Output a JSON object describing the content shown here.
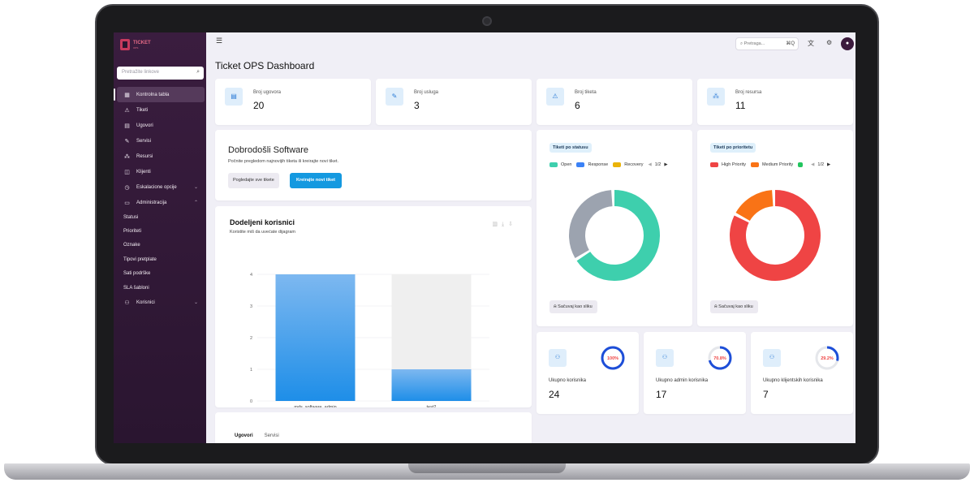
{
  "app": {
    "logo_text": "TICKET",
    "logo_sub": "OPS"
  },
  "sidebar": {
    "search_placeholder": "Pretražite linkove",
    "items": [
      {
        "label": "Kontrolna tabla",
        "icon": "grid-icon"
      },
      {
        "label": "Tiketi",
        "icon": "warning-icon"
      },
      {
        "label": "Ugovori",
        "icon": "document-icon"
      },
      {
        "label": "Servisi",
        "icon": "wrench-icon"
      },
      {
        "label": "Resursi",
        "icon": "cluster-icon"
      },
      {
        "label": "Klijenti",
        "icon": "briefcase-icon"
      },
      {
        "label": "Eskalacione opcije",
        "icon": "clock-icon"
      },
      {
        "label": "Administracija",
        "icon": "folder-icon"
      }
    ],
    "admin_subitems": [
      "Statusi",
      "Prioriteti",
      "Oznake",
      "Tipovi pretplate",
      "Sati podrške",
      "SLA šabloni"
    ],
    "users_item": {
      "label": "Korisnici",
      "icon": "users-icon"
    }
  },
  "topbar": {
    "search_placeholder": "Pretraga...",
    "shortcut": "⌘Q"
  },
  "page": {
    "title": "Ticket OPS Dashboard"
  },
  "stats": [
    {
      "label": "Broj ugovora",
      "value": "20",
      "icon": "document-icon"
    },
    {
      "label": "Broj usluga",
      "value": "3",
      "icon": "wrench-icon"
    },
    {
      "label": "Broj tiketa",
      "value": "6",
      "icon": "warning-icon"
    },
    {
      "label": "Broj resursa",
      "value": "11",
      "icon": "cluster-icon"
    }
  ],
  "welcome": {
    "title": "Dobrodošli Software",
    "text": "Počnite pregledom najnovijih tiketa ili kreirajte novi tiket.",
    "view_all": "Pogledajte sve tikete",
    "create_new": "Kreirajte novi tiket"
  },
  "assigned_users": {
    "title": "Dodeljeni korisnici",
    "subtitle": "Koristite miš da uvećate dijagram"
  },
  "status_chart": {
    "badge": "Tiketi po statusu",
    "legend": [
      {
        "name": "Open",
        "color": "#3ecfad"
      },
      {
        "name": "Response",
        "color": "#3b82f6"
      },
      {
        "name": "Recovery",
        "color": "#eab308"
      }
    ],
    "page": "1/2",
    "save_label": "Sačuvaj kao sliku"
  },
  "priority_chart": {
    "badge": "Tiketi po prioritetu",
    "legend": [
      {
        "name": "High Priority",
        "color": "#ef4444"
      },
      {
        "name": "Medium Priority",
        "color": "#f97316"
      },
      {
        "name": "",
        "color": "#22c55e"
      }
    ],
    "page": "1/2",
    "save_label": "Sačuvaj kao sliku"
  },
  "user_cards": [
    {
      "label": "Ukupno korisnika",
      "value": "24",
      "percent_label": "100%",
      "percent": 100,
      "color": "#1d4ed8",
      "text_color": "#ef4444"
    },
    {
      "label": "Ukupno admin korisnika",
      "value": "17",
      "percent_label": "70.8%",
      "percent": 70.8,
      "color": "#1d4ed8",
      "text_color": "#ef4444"
    },
    {
      "label": "Ukupno klijentskih korisnika",
      "value": "7",
      "percent_label": "29.2%",
      "percent": 29.2,
      "color": "#1d4ed8",
      "text_color": "#ef4444"
    }
  ],
  "bottom_tabs": [
    "Ugovori",
    "Servisi"
  ],
  "chart_data": [
    {
      "type": "bar",
      "title": "Dodeljeni korisnici",
      "categories": [
        "mds_software_admin",
        "test2"
      ],
      "values": [
        4,
        1
      ],
      "ylim": [
        0,
        4
      ],
      "yticks": [
        "0",
        "1",
        "2",
        "3",
        "4"
      ],
      "grid": true,
      "color": "#1e90e8"
    },
    {
      "type": "pie",
      "title": "Tiketi po statusu",
      "labels": [
        "Open",
        "(gray)"
      ],
      "values": [
        4,
        2
      ],
      "colors": [
        "#3ecfad",
        "#9ca3af"
      ]
    },
    {
      "type": "pie",
      "title": "Tiketi po prioritetu",
      "labels": [
        "High Priority",
        "Medium Priority"
      ],
      "values": [
        5,
        1
      ],
      "colors": [
        "#ef4444",
        "#f97316"
      ]
    }
  ]
}
